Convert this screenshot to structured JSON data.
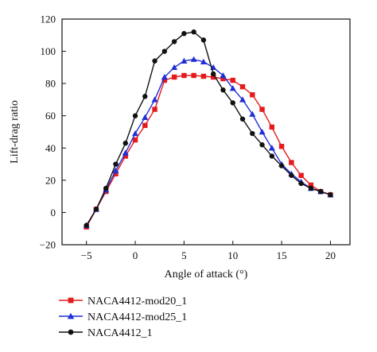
{
  "chart_data": {
    "type": "line",
    "xlabel": "Angle of attack (°)",
    "ylabel": "Lift-drag ratio",
    "xlim": [
      -7.5,
      22
    ],
    "ylim": [
      -20,
      120
    ],
    "xticks": [
      -5,
      0,
      5,
      10,
      15,
      20
    ],
    "yticks": [
      -20,
      0,
      20,
      40,
      60,
      80,
      100,
      120
    ],
    "xtick_labels": [
      "−5",
      "0",
      "5",
      "10",
      "15",
      "20"
    ],
    "ytick_labels": [
      "−20",
      "0",
      "20",
      "40",
      "60",
      "80",
      "100",
      "120"
    ],
    "legend_position": "bottom-left, outside plot",
    "grid": false,
    "series": [
      {
        "name": "NACA4412-mod20_1",
        "color": "#e41a1c",
        "marker": "square",
        "x": [
          -5,
          -4,
          -3,
          -2,
          -1,
          0,
          1,
          2,
          3,
          4,
          5,
          6,
          7,
          8,
          9,
          10,
          11,
          12,
          13,
          14,
          15,
          16,
          17,
          18,
          19,
          20
        ],
        "y": [
          -9,
          2,
          13,
          24,
          35,
          45,
          54,
          64,
          82,
          84,
          85,
          85,
          84.5,
          84,
          83,
          82,
          78,
          73,
          64,
          53,
          41,
          31,
          23,
          17,
          13,
          11
        ]
      },
      {
        "name": "NACA4412-mod25_1",
        "color": "#1f2fd6",
        "marker": "triangle",
        "x": [
          -5,
          -4,
          -3,
          -2,
          -1,
          0,
          1,
          2,
          3,
          4,
          5,
          6,
          7,
          8,
          9,
          10,
          11,
          12,
          13,
          14,
          15,
          16,
          17,
          18,
          19,
          20
        ],
        "y": [
          -8,
          2,
          14,
          26,
          37,
          49,
          59,
          70,
          84,
          90,
          94,
          95,
          93.5,
          90,
          85,
          77,
          70,
          61,
          50,
          40,
          30,
          24,
          19,
          15,
          13,
          11
        ]
      },
      {
        "name": "NACA4412_1",
        "color": "#111111",
        "marker": "circle",
        "x": [
          -5,
          -4,
          -3,
          -2,
          -1,
          0,
          1,
          2,
          3,
          4,
          5,
          6,
          7,
          8,
          9,
          10,
          11,
          12,
          13,
          14,
          15,
          16,
          17,
          18,
          19,
          20
        ],
        "y": [
          -8,
          2,
          15,
          30,
          43,
          60,
          72,
          94,
          100,
          106,
          111,
          112,
          107,
          86,
          76,
          68,
          58,
          49,
          42,
          35,
          29,
          23,
          18,
          15,
          13,
          11
        ]
      }
    ]
  }
}
